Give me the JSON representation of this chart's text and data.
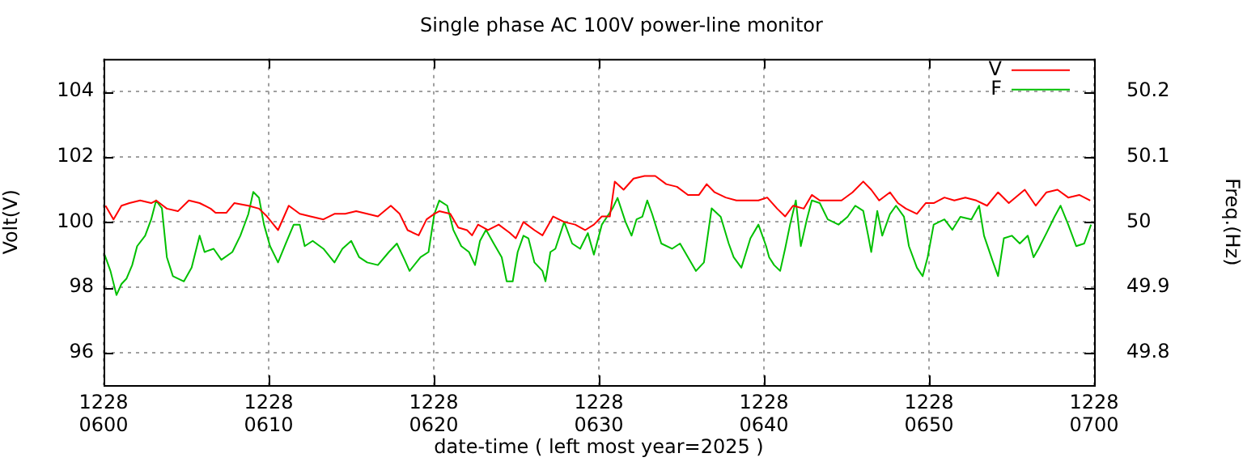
{
  "chart_data": {
    "type": "line",
    "title": "Single phase AC 100V power-line monitor",
    "xlabel": "date-time ( left most year=2025 )",
    "ylabel": "Volt(V)",
    "y2label": "Freq.(Hz)",
    "xlim": [
      "2025-12-28T06:00",
      "2025-12-28T07:00"
    ],
    "xticks": [
      {
        "value": "2025-12-28T06:00",
        "label": "1228\n0600"
      },
      {
        "value": "2025-12-28T06:10",
        "label": "1228\n0610"
      },
      {
        "value": "2025-12-28T06:20",
        "label": "1228\n0620"
      },
      {
        "value": "2025-12-28T06:30",
        "label": "1228\n0630"
      },
      {
        "value": "2025-12-28T06:40",
        "label": "1228\n0640"
      },
      {
        "value": "2025-12-28T06:50",
        "label": "1228\n0650"
      },
      {
        "value": "2025-12-28T07:00",
        "label": "1228\n0700"
      }
    ],
    "ylim": [
      95,
      105
    ],
    "yticks": [
      96,
      98,
      100,
      102,
      104
    ],
    "y2lim": [
      49.75,
      50.25
    ],
    "y2ticks": [
      49.8,
      49.9,
      50,
      50.1,
      50.2
    ],
    "grid": true,
    "legend": "top right",
    "marker": "none",
    "series": [
      {
        "name": "V",
        "color": "#ff0000",
        "x": [
          "2025-12-28T06:00:07",
          "2025-12-28T06:00:36",
          "2025-12-28T06:01:05",
          "2025-12-28T06:01:34",
          "2025-12-28T06:02:13",
          "2025-12-28T06:02:53",
          "2025-12-28T06:03:11",
          "2025-12-28T06:03:50",
          "2025-12-28T06:04:30",
          "2025-12-28T06:05:10",
          "2025-12-28T06:05:49",
          "2025-12-28T06:06:29",
          "2025-12-28T06:06:47",
          "2025-12-28T06:07:26",
          "2025-12-28T06:07:55",
          "2025-12-28T06:08:46",
          "2025-12-28T06:09:25",
          "2025-12-28T06:09:54",
          "2025-12-28T06:10:34",
          "2025-12-28T06:11:13",
          "2025-12-28T06:11:53",
          "2025-12-28T06:12:32",
          "2025-12-28T06:13:19",
          "2025-12-28T06:13:59",
          "2025-12-28T06:14:38",
          "2025-12-28T06:15:18",
          "2025-12-28T06:15:58",
          "2025-12-28T06:16:37",
          "2025-12-28T06:17:24",
          "2025-12-28T06:17:56",
          "2025-12-28T06:18:25",
          "2025-12-28T06:19:05",
          "2025-12-28T06:19:34",
          "2025-12-28T06:20:02",
          "2025-12-28T06:20:20",
          "2025-12-28T06:21:00",
          "2025-12-28T06:21:29",
          "2025-12-28T06:22:01",
          "2025-12-28T06:22:19",
          "2025-12-28T06:22:41",
          "2025-12-28T06:23:17",
          "2025-12-28T06:23:56",
          "2025-12-28T06:24:36",
          "2025-12-28T06:24:58",
          "2025-12-28T06:25:26",
          "2025-12-28T06:26:06",
          "2025-12-28T06:26:35",
          "2025-12-28T06:27:14",
          "2025-12-28T06:27:54",
          "2025-12-28T06:28:34",
          "2025-12-28T06:29:10",
          "2025-12-28T06:29:42",
          "2025-12-28T06:30:11",
          "2025-12-28T06:30:40",
          "2025-12-28T06:30:58",
          "2025-12-28T06:31:30",
          "2025-12-28T06:32:06",
          "2025-12-28T06:32:46",
          "2025-12-28T06:33:25",
          "2025-12-28T06:34:05",
          "2025-12-28T06:34:44",
          "2025-12-28T06:35:24",
          "2025-12-28T06:36:04",
          "2025-12-28T06:36:32",
          "2025-12-28T06:37:01",
          "2025-12-28T06:37:41",
          "2025-12-28T06:38:20",
          "2025-12-28T06:39:00",
          "2025-12-28T06:39:40",
          "2025-12-28T06:40:12",
          "2025-12-28T06:40:48",
          "2025-12-28T06:41:17",
          "2025-12-28T06:41:46",
          "2025-12-28T06:42:25",
          "2025-12-28T06:42:54",
          "2025-12-28T06:43:23",
          "2025-12-28T06:44:02",
          "2025-12-28T06:44:42",
          "2025-12-28T06:45:22",
          "2025-12-28T06:46:01",
          "2025-12-28T06:46:30",
          "2025-12-28T06:46:59",
          "2025-12-28T06:47:38",
          "2025-12-28T06:48:07",
          "2025-12-28T06:48:36",
          "2025-12-28T06:49:16",
          "2025-12-28T06:49:48",
          "2025-12-28T06:50:17",
          "2025-12-28T06:50:56",
          "2025-12-28T06:51:32",
          "2025-12-28T06:52:12",
          "2025-12-28T06:52:52",
          "2025-12-28T06:53:31",
          "2025-12-28T06:54:11",
          "2025-12-28T06:54:50",
          "2025-12-28T06:55:48",
          "2025-12-28T06:56:28",
          "2025-12-28T06:57:07",
          "2025-12-28T06:57:47",
          "2025-12-28T06:58:26",
          "2025-12-28T06:59:06",
          "2025-12-28T06:59:46"
        ],
        "values": [
          100.5,
          100.08,
          100.5,
          100.58,
          100.66,
          100.58,
          100.66,
          100.41,
          100.33,
          100.66,
          100.58,
          100.41,
          100.28,
          100.28,
          100.58,
          100.5,
          100.41,
          100.17,
          99.75,
          100.5,
          100.25,
          100.17,
          100.08,
          100.25,
          100.25,
          100.33,
          100.25,
          100.17,
          100.5,
          100.25,
          99.75,
          99.59,
          100.08,
          100.25,
          100.33,
          100.25,
          99.83,
          99.75,
          99.59,
          99.92,
          99.75,
          99.92,
          99.67,
          99.5,
          100,
          99.75,
          99.59,
          100.17,
          100,
          99.92,
          99.75,
          99.92,
          100.17,
          100.17,
          101.24,
          100.99,
          101.33,
          101.41,
          101.41,
          101.16,
          101.08,
          100.83,
          100.83,
          101.16,
          100.91,
          100.75,
          100.66,
          100.66,
          100.66,
          100.75,
          100.41,
          100.17,
          100.5,
          100.41,
          100.83,
          100.66,
          100.66,
          100.66,
          100.91,
          101.24,
          100.99,
          100.66,
          100.91,
          100.58,
          100.41,
          100.25,
          100.58,
          100.58,
          100.75,
          100.66,
          100.75,
          100.66,
          100.5,
          100.91,
          100.58,
          100.99,
          100.5,
          100.91,
          100.99,
          100.75,
          100.83,
          100.66
        ]
      },
      {
        "name": "F",
        "color": "#00c000",
        "axis": "y2",
        "x": [
          "2025-12-28T06:00:00",
          "2025-12-28T06:00:07",
          "2025-12-28T06:00:25",
          "2025-12-28T06:00:47",
          "2025-12-28T06:01:05",
          "2025-12-28T06:01:23",
          "2025-12-28T06:01:44",
          "2025-12-28T06:02:02",
          "2025-12-28T06:02:31",
          "2025-12-28T06:02:53",
          "2025-12-28T06:03:11",
          "2025-12-28T06:03:32",
          "2025-12-28T06:03:50",
          "2025-12-28T06:04:12",
          "2025-12-28T06:04:52",
          "2025-12-28T06:05:20",
          "2025-12-28T06:05:49",
          "2025-12-28T06:06:07",
          "2025-12-28T06:06:40",
          "2025-12-28T06:07:08",
          "2025-12-28T06:07:48",
          "2025-12-28T06:08:17",
          "2025-12-28T06:08:46",
          "2025-12-28T06:09:04",
          "2025-12-28T06:09:25",
          "2025-12-28T06:09:43",
          "2025-12-28T06:10:05",
          "2025-12-28T06:10:34",
          "2025-12-28T06:11:02",
          "2025-12-28T06:11:31",
          "2025-12-28T06:11:53",
          "2025-12-28T06:12:11",
          "2025-12-28T06:12:40",
          "2025-12-28T06:13:19",
          "2025-12-28T06:13:59",
          "2025-12-28T06:14:28",
          "2025-12-28T06:15:00",
          "2025-12-28T06:15:29",
          "2025-12-28T06:15:58",
          "2025-12-28T06:16:37",
          "2025-12-28T06:17:17",
          "2025-12-28T06:17:46",
          "2025-12-28T06:18:14",
          "2025-12-28T06:18:32",
          "2025-12-28T06:19:12",
          "2025-12-28T06:19:41",
          "2025-12-28T06:20:02",
          "2025-12-28T06:20:20",
          "2025-12-28T06:20:49",
          "2025-12-28T06:21:11",
          "2025-12-28T06:21:40",
          "2025-12-28T06:22:08",
          "2025-12-28T06:22:30",
          "2025-12-28T06:22:48",
          "2025-12-28T06:23:10",
          "2025-12-28T06:23:38",
          "2025-12-28T06:24:07",
          "2025-12-28T06:24:25",
          "2025-12-28T06:24:47",
          "2025-12-28T06:25:05",
          "2025-12-28T06:25:26",
          "2025-12-28T06:25:44",
          "2025-12-28T06:26:06",
          "2025-12-28T06:26:35",
          "2025-12-28T06:26:46",
          "2025-12-28T06:27:04",
          "2025-12-28T06:27:22",
          "2025-12-28T06:27:54",
          "2025-12-28T06:28:23",
          "2025-12-28T06:28:52",
          "2025-12-28T06:29:20",
          "2025-12-28T06:29:42",
          "2025-12-28T06:30:11",
          "2025-12-28T06:30:50",
          "2025-12-28T06:31:08",
          "2025-12-28T06:31:37",
          "2025-12-28T06:31:59",
          "2025-12-28T06:32:17",
          "2025-12-28T06:32:38",
          "2025-12-28T06:32:56",
          "2025-12-28T06:33:14",
          "2025-12-28T06:33:47",
          "2025-12-28T06:34:26",
          "2025-12-28T06:34:55",
          "2025-12-28T06:35:24",
          "2025-12-28T06:35:53",
          "2025-12-28T06:36:22",
          "2025-12-28T06:36:50",
          "2025-12-28T06:37:23",
          "2025-12-28T06:37:52",
          "2025-12-28T06:38:10",
          "2025-12-28T06:38:38",
          "2025-12-28T06:39:11",
          "2025-12-28T06:39:40",
          "2025-12-28T06:40:08",
          "2025-12-28T06:40:19",
          "2025-12-28T06:40:37",
          "2025-12-28T06:40:59",
          "2025-12-28T06:41:17",
          "2025-12-28T06:41:35",
          "2025-12-28T06:41:56",
          "2025-12-28T06:42:14",
          "2025-12-28T06:42:36",
          "2025-12-28T06:42:54",
          "2025-12-28T06:43:23",
          "2025-12-28T06:43:52",
          "2025-12-28T06:44:31",
          "2025-12-28T06:45:04",
          "2025-12-28T06:45:32",
          "2025-12-28T06:46:01",
          "2025-12-28T06:46:19",
          "2025-12-28T06:46:30",
          "2025-12-28T06:46:52",
          "2025-12-28T06:47:10",
          "2025-12-28T06:47:38",
          "2025-12-28T06:48:00",
          "2025-12-28T06:48:29",
          "2025-12-28T06:48:47",
          "2025-12-28T06:49:16",
          "2025-12-28T06:49:37",
          "2025-12-28T06:49:55",
          "2025-12-28T06:50:17",
          "2025-12-28T06:50:56",
          "2025-12-28T06:51:25",
          "2025-12-28T06:51:54",
          "2025-12-28T06:52:34",
          "2025-12-28T06:53:02",
          "2025-12-28T06:53:20",
          "2025-12-28T06:53:53",
          "2025-12-28T06:54:11",
          "2025-12-28T06:54:32",
          "2025-12-28T06:55:01",
          "2025-12-28T06:55:30",
          "2025-12-28T06:55:59",
          "2025-12-28T06:56:20",
          "2025-12-28T06:56:38",
          "2025-12-28T06:57:07",
          "2025-12-28T06:57:36",
          "2025-12-28T06:57:58",
          "2025-12-28T06:58:26",
          "2025-12-28T06:58:55",
          "2025-12-28T06:59:24",
          "2025-12-28T06:59:49"
        ],
        "values": [
          49.954,
          49.946,
          49.925,
          49.888,
          49.905,
          49.913,
          49.934,
          49.963,
          49.979,
          50.004,
          50.033,
          50.021,
          49.946,
          49.917,
          49.909,
          49.93,
          49.979,
          49.954,
          49.959,
          49.942,
          49.954,
          49.979,
          50.012,
          50.046,
          50.037,
          49.996,
          49.963,
          49.938,
          49.967,
          49.996,
          49.996,
          49.963,
          49.971,
          49.959,
          49.938,
          49.959,
          49.971,
          49.946,
          49.938,
          49.934,
          49.954,
          49.967,
          49.942,
          49.925,
          49.946,
          49.954,
          50.012,
          50.033,
          50.025,
          49.988,
          49.963,
          49.954,
          49.934,
          49.971,
          49.988,
          49.967,
          49.946,
          49.909,
          49.909,
          49.954,
          49.979,
          49.975,
          49.938,
          49.925,
          49.909,
          49.954,
          49.959,
          50,
          49.967,
          49.959,
          49.983,
          49.95,
          49.996,
          50.021,
          50.037,
          50,
          49.979,
          50.004,
          50.008,
          50.033,
          50.012,
          49.967,
          49.959,
          49.967,
          49.946,
          49.925,
          49.938,
          50.021,
          50.008,
          49.967,
          49.946,
          49.93,
          49.975,
          49.996,
          49.963,
          49.946,
          49.934,
          49.925,
          49.959,
          49.996,
          50.033,
          49.963,
          50.004,
          50.033,
          50.029,
          50.004,
          49.996,
          50.008,
          50.025,
          50.017,
          49.979,
          49.954,
          50.017,
          49.979,
          50.012,
          50.025,
          50.008,
          49.963,
          49.93,
          49.917,
          49.946,
          49.996,
          50.004,
          49.988,
          50.008,
          50.004,
          50.025,
          49.979,
          49.938,
          49.917,
          49.975,
          49.979,
          49.967,
          49.979,
          49.946,
          49.959,
          49.983,
          50.008,
          50.025,
          49.996,
          49.963,
          49.967,
          49.996
        ]
      }
    ]
  }
}
